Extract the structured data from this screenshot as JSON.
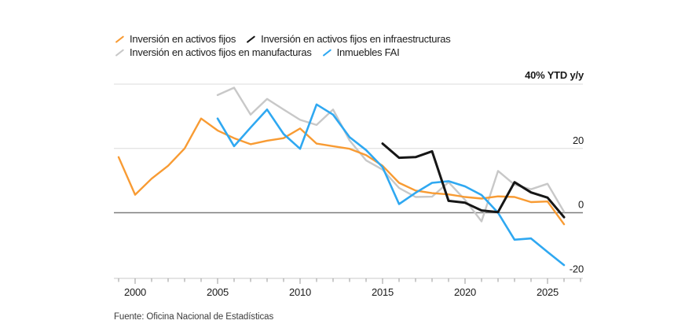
{
  "legend": {
    "items": [
      {
        "label": "Inversión en activos fijos",
        "color": "#F89B33",
        "row": 0
      },
      {
        "label": "Inversión en activos fijos en infraestructuras",
        "color": "#161616",
        "row": 0
      },
      {
        "label": "Inversión en activos fijos en manufacturas",
        "color": "#C8C8C8",
        "row": 1
      },
      {
        "label": "Inmuebles FAI",
        "color": "#2FA8F1",
        "row": 1
      }
    ]
  },
  "footer": {
    "source": "Fuente: Oficina Nacional de Estadísticas"
  },
  "chart_data": {
    "type": "line",
    "unit_label": "40% YTD y/y",
    "title": "",
    "xlabel": "",
    "ylabel": "YTD y/y (%)",
    "grid": "horizontal-only",
    "legend_position": "top-left",
    "y_axis": {
      "range": [
        -20,
        40
      ],
      "gridlines": [
        40,
        20
      ],
      "zero_line": 0,
      "right_labels": [
        {
          "value": 20,
          "label": "20"
        },
        {
          "value": 0,
          "label": "0"
        },
        {
          "value": -20,
          "label": "-20"
        }
      ]
    },
    "x_axis": {
      "range": [
        1999,
        2026
      ],
      "minor_tick_start": 1999,
      "minor_tick_end": 2027,
      "major_ticks": [
        2000,
        2005,
        2010,
        2015,
        2020,
        2025
      ]
    },
    "colors": {
      "fai_total": "#F89B33",
      "infrastructure": "#161616",
      "manufacturing": "#C8C8C8",
      "real_estate": "#2FA8F1",
      "gridline": "#DBDBDB",
      "zero_line": "#7D7D7D",
      "axis_base": "#C9C9C9",
      "tick": "#9A9A9A",
      "text": "#1A1A1A"
    },
    "series": [
      {
        "name": "Inversión en activos fijos en manufacturas",
        "color": "#C8C8C8",
        "stroke_width": 2.4,
        "start_year": 2005,
        "values": [
          36.6,
          38.9,
          30.5,
          35.4,
          32.1,
          28.9,
          27.3,
          32.1,
          22.5,
          16.3,
          13.4,
          7.7,
          4.9,
          5.0,
          9.5,
          4.0,
          -2.7,
          13.0,
          8.7,
          7.3,
          9.0,
          0.3
        ]
      },
      {
        "name": "Inversión en activos fijos",
        "color": "#F89B33",
        "stroke_width": 2.4,
        "start_year": 1999,
        "values": [
          17.3,
          5.6,
          10.6,
          14.6,
          20.0,
          29.3,
          25.6,
          23.2,
          21.3,
          22.4,
          23.2,
          26.2,
          21.5,
          20.7,
          19.9,
          17.9,
          14.6,
          9.3,
          6.9,
          6.1,
          5.7,
          4.9,
          4.4,
          5.1,
          4.9,
          3.3,
          3.5,
          -3.6
        ]
      },
      {
        "name": "Inmuebles FAI",
        "color": "#2FA8F1",
        "stroke_width": 2.6,
        "start_year": 2005,
        "values": [
          29.3,
          20.7,
          26.5,
          32.1,
          24.5,
          19.9,
          33.7,
          30.5,
          23.5,
          19.5,
          14.2,
          2.7,
          6.2,
          9.3,
          9.8,
          8.2,
          5.5,
          0.0,
          -8.4,
          -8.0,
          -12.2,
          -16.3
        ]
      },
      {
        "name": "Inversión en activos fijos en infraestructuras",
        "color": "#161616",
        "stroke_width": 3.0,
        "start_year": 2015,
        "values": [
          21.5,
          17.1,
          17.3,
          19.1,
          3.7,
          3.1,
          0.7,
          0.2,
          9.5,
          6.3,
          4.7,
          -1.4
        ]
      }
    ]
  }
}
